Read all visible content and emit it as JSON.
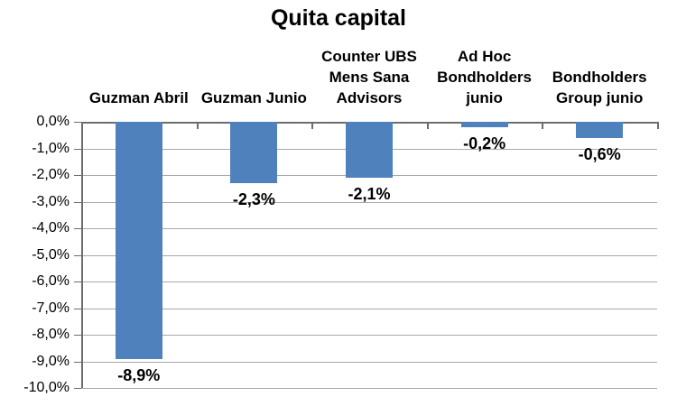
{
  "chart_data": {
    "type": "bar",
    "title": "Quita capital",
    "categories": [
      "Guzman Abril",
      "Guzman Junio",
      "Counter UBS Mens Sana Advisors",
      "Ad Hoc Bondholders junio",
      "Bondholders Group junio"
    ],
    "category_label_lines": [
      [
        "Guzman Abril"
      ],
      [
        "Guzman Junio"
      ],
      [
        "Counter UBS",
        "Mens Sana",
        "Advisors"
      ],
      [
        "Ad Hoc",
        "Bondholders",
        "junio"
      ],
      [
        "Bondholders",
        "Group junio"
      ]
    ],
    "values": [
      -8.9,
      -2.3,
      -2.1,
      -0.2,
      -0.6
    ],
    "data_labels": [
      "-8,9%",
      "-2,3%",
      "-2,1%",
      "-0,2%",
      "-0,6%"
    ],
    "y_tick_labels": [
      "0,0%",
      "-1,0%",
      "-2,0%",
      "-3,0%",
      "-4,0%",
      "-5,0%",
      "-6,0%",
      "-7,0%",
      "-8,0%",
      "-9,0%",
      "-10,0%"
    ],
    "y_tick_values": [
      0,
      -1,
      -2,
      -3,
      -4,
      -5,
      -6,
      -7,
      -8,
      -9,
      -10
    ],
    "ylim": [
      -10,
      0
    ],
    "xlabel": "",
    "ylabel": "",
    "grid": true,
    "legend": "none",
    "decimal_separator": ",",
    "colors": {
      "bar": "#4F81BD",
      "axis": "#6d6d6d",
      "gridline": "#a8a8a8",
      "text": "#000000",
      "background": "#ffffff"
    }
  }
}
